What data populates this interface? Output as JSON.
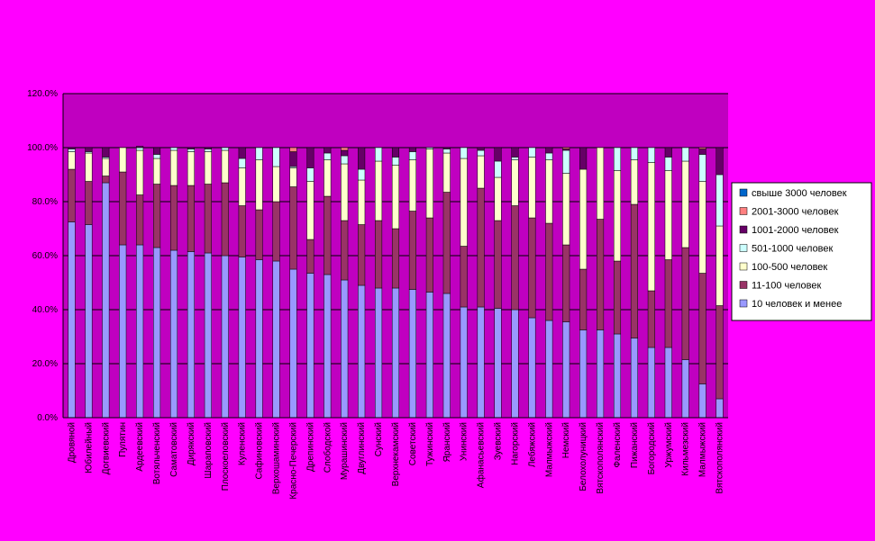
{
  "chart_data": {
    "type": "bar",
    "stacked": true,
    "percent": true,
    "ylim": [
      0,
      120
    ],
    "yticks": [
      "0.0%",
      "20.0%",
      "40.0%",
      "60.0%",
      "80.0%",
      "100.0%",
      "120.0%"
    ],
    "grid": true,
    "legend_position": "right",
    "colors": {
      "background": "#FF00FF",
      "plot_area": "#C000C0",
      "gridline": "#000000",
      "s10": "#9999FF",
      "s11_100": "#993366",
      "s100_500": "#FFFFCC",
      "s501_1000": "#CCFFFF",
      "s1001_2000": "#660066",
      "s2001_3000": "#FF8080",
      "s3000": "#0066CC"
    },
    "series": [
      {
        "name": "10 человек и менее",
        "key": "s10"
      },
      {
        "name": "11-100 человек",
        "key": "s11_100"
      },
      {
        "name": "100-500 человек",
        "key": "s100_500"
      },
      {
        "name": "501-1000 человек",
        "key": "s501_1000"
      },
      {
        "name": "1001-2000 человек",
        "key": "s1001_2000"
      },
      {
        "name": "2001-3000 человек",
        "key": "s2001_3000"
      },
      {
        "name": "свыше 3000 человек",
        "key": "s3000"
      }
    ],
    "legend_order": [
      "свыше 3000 человек",
      "2001-3000 человек",
      "1001-2000 человек",
      "501-1000 человек",
      "100-500 человек",
      "11-100 человек",
      "10 человек и менее"
    ],
    "categories": [
      "Дровяной",
      "Юбилейный",
      "Догвиевский",
      "Пулятин",
      "Ардеевский",
      "Вотяльченский",
      "Саматовский",
      "Дирякский",
      "Шараповский",
      "Плоскоеловский",
      "Куленский",
      "Сафиновский",
      "Верхошаминский",
      "Красно-Печерский",
      "Дрепинский",
      "Слободской",
      "Мурашинский",
      "Двуглинский",
      "Сунский",
      "Верхнекамский",
      "Советский",
      "Тужинский",
      "Яранский",
      "Унинский",
      "Афанасьевский",
      "Зуевский",
      "Нагорский",
      "Лебяжский",
      "Малмыжский",
      "Немский",
      "Белохолуницкий",
      "Вятскополянский",
      "Фаленский",
      "Пижанский",
      "Богородский",
      "Уржумский",
      "Кильмезский",
      "Малмыжский",
      "Вятскополянский"
    ],
    "values": {
      "s10": [
        72.5,
        71.5,
        87.0,
        64.0,
        64.0,
        63.0,
        62.0,
        61.5,
        61.0,
        60.0,
        59.5,
        58.5,
        58.0,
        55.0,
        53.5,
        53.0,
        51.0,
        49.0,
        48.0,
        48.0,
        47.5,
        46.5,
        46.0,
        41.0,
        41.0,
        40.5,
        40.0,
        37.0,
        36.0,
        35.5,
        32.5,
        32.5,
        31.0,
        29.5,
        26.0,
        26.0,
        21.5,
        12.5,
        7.0
      ],
      "s11_100": [
        19.5,
        16.0,
        2.5,
        27.0,
        18.5,
        23.5,
        24.0,
        24.5,
        25.5,
        27.0,
        19.0,
        18.5,
        22.0,
        30.5,
        12.5,
        29.0,
        22.0,
        22.5,
        25.0,
        22.0,
        29.0,
        27.5,
        37.5,
        22.5,
        44.0,
        32.5,
        38.5,
        37.0,
        36.0,
        28.5,
        22.5,
        41.0,
        27.0,
        49.5,
        21.0,
        32.5,
        41.5,
        41.0,
        34.5
      ],
      "s100_500": [
        6.5,
        10.5,
        6.5,
        9.0,
        16.5,
        9.5,
        13.0,
        12.5,
        12.0,
        12.0,
        14.0,
        18.5,
        13.0,
        7.0,
        21.5,
        13.5,
        21.0,
        16.5,
        22.0,
        23.5,
        19.0,
        25.5,
        14.5,
        32.5,
        12.0,
        16.0,
        17.0,
        22.5,
        23.5,
        26.5,
        37.0,
        26.5,
        33.5,
        16.5,
        47.5,
        33.0,
        32.0,
        34.0,
        29.5
      ],
      "s501_1000": [
        1.0,
        0.5,
        0.5,
        0.0,
        1.0,
        1.5,
        1.0,
        1.0,
        1.0,
        1.0,
        3.5,
        4.5,
        7.0,
        0.5,
        5.0,
        2.5,
        3.0,
        4.0,
        5.0,
        3.0,
        3.0,
        0.5,
        1.5,
        4.0,
        2.0,
        6.0,
        1.0,
        3.5,
        2.5,
        8.5,
        0.0,
        0.0,
        8.5,
        4.5,
        5.5,
        5.0,
        5.0,
        10.0,
        19.0
      ],
      "s1001_2000": [
        0.5,
        1.5,
        3.5,
        0.0,
        0.5,
        2.5,
        0.0,
        0.5,
        0.5,
        0.0,
        4.0,
        0.0,
        0.0,
        5.5,
        7.5,
        2.0,
        2.0,
        8.0,
        0.0,
        3.5,
        1.5,
        0.0,
        0.5,
        0.0,
        1.0,
        5.0,
        3.5,
        0.0,
        2.0,
        0.5,
        8.0,
        0.0,
        0.0,
        0.0,
        0.0,
        3.5,
        0.0,
        2.0,
        10.0
      ],
      "s2001_3000": [
        0,
        0,
        0,
        0,
        0,
        0,
        0,
        0,
        0,
        0,
        0,
        0,
        0,
        1.5,
        0,
        0,
        1.0,
        0,
        0,
        0,
        0,
        0,
        0,
        0,
        0,
        0,
        0,
        0,
        0,
        0.5,
        0,
        0,
        0,
        0,
        0,
        0,
        0,
        0.5,
        0
      ],
      "s3000": [
        0,
        0,
        0,
        0,
        0,
        0,
        0,
        0,
        0,
        0,
        0,
        0,
        0,
        0,
        0,
        0,
        0,
        0,
        0,
        0,
        0,
        0,
        0,
        0,
        0,
        0,
        0,
        0,
        0,
        0,
        0,
        0,
        0,
        0,
        0,
        0,
        0,
        0,
        0
      ]
    }
  }
}
